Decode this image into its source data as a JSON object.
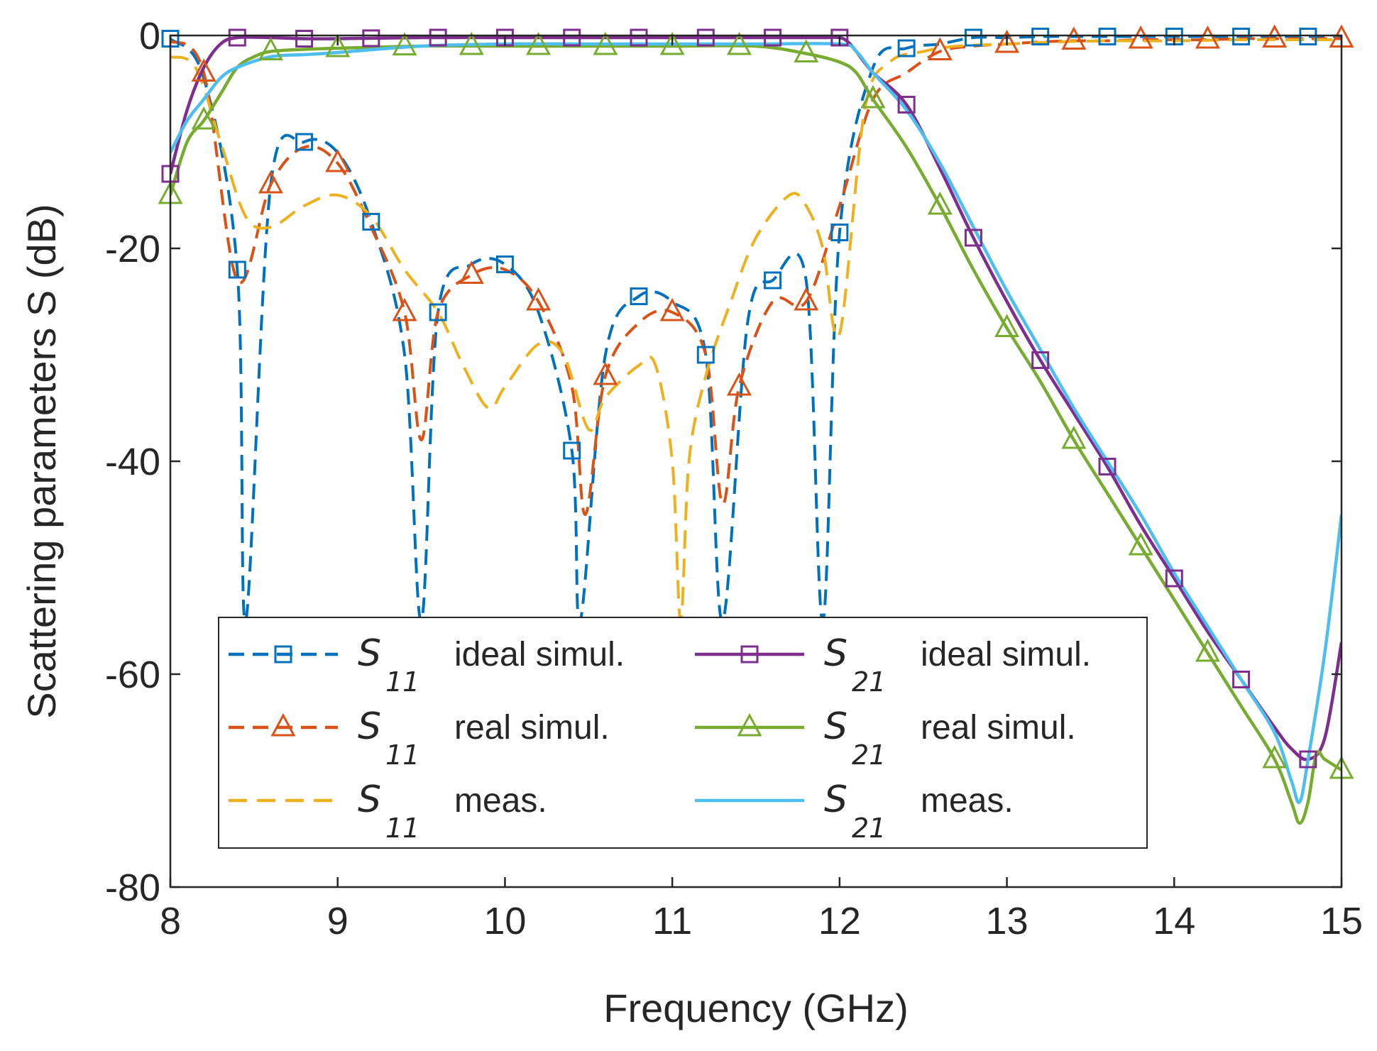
{
  "chart_data": {
    "type": "line",
    "xlabel": "Frequency (GHz)",
    "ylabel": "Scattering parameters  S  (dB)",
    "xlim": [
      8,
      15
    ],
    "ylim": [
      -80,
      0
    ],
    "xticks": [
      8,
      9,
      10,
      11,
      12,
      13,
      14,
      15
    ],
    "yticks": [
      0,
      -20,
      -40,
      -60,
      -80
    ],
    "grid": false,
    "legend_position": "lower-center",
    "series": [
      {
        "id": "s11-ideal",
        "legend": {
          "sym": "S",
          "sub": "11",
          "desc": "ideal simul."
        },
        "color": "#0072BD",
        "dash": "dashed",
        "marker": "square",
        "x": [
          8.0,
          8.2,
          8.4,
          8.45,
          8.6,
          8.8,
          9.0,
          9.2,
          9.4,
          9.5,
          9.6,
          9.8,
          10.0,
          10.2,
          10.4,
          10.45,
          10.6,
          10.8,
          11.0,
          11.2,
          11.3,
          11.45,
          11.6,
          11.8,
          11.9,
          12.0,
          12.2,
          12.4,
          12.6,
          12.8,
          13.0,
          13.2,
          13.4,
          13.6,
          13.8,
          14.0,
          14.2,
          14.4,
          14.6,
          14.8,
          15.0
        ],
        "y": [
          -0.3,
          -4,
          -22,
          -55,
          -14,
          -10,
          -11,
          -17.5,
          -30,
          -55,
          -26,
          -21.5,
          -21.5,
          -26,
          -39,
          -55,
          -30,
          -24.5,
          -25,
          -30,
          -55,
          -27,
          -23,
          -23,
          -55,
          -18.5,
          -3,
          -1.2,
          -0.8,
          -0.2,
          -0.2,
          -0.1,
          -0.1,
          -0.1,
          -0.1,
          -0.1,
          -0.1,
          -0.1,
          -0.1,
          -0.1,
          -0.1
        ],
        "marker_x": [
          8.0,
          8.4,
          8.8,
          9.2,
          9.6,
          10.0,
          10.4,
          10.8,
          11.2,
          11.6,
          12.0,
          12.4,
          12.8,
          13.2,
          13.6,
          14.0,
          14.4,
          14.8
        ]
      },
      {
        "id": "s11-real",
        "legend": {
          "sym": "S",
          "sub": "11",
          "desc": "real simul."
        },
        "color": "#D95319",
        "dash": "dashed",
        "marker": "triangle",
        "x": [
          8.0,
          8.2,
          8.4,
          8.6,
          8.8,
          9.0,
          9.2,
          9.4,
          9.5,
          9.6,
          9.8,
          10.0,
          10.2,
          10.4,
          10.48,
          10.6,
          10.8,
          11.0,
          11.2,
          11.3,
          11.4,
          11.6,
          11.8,
          12.0,
          12.2,
          12.4,
          12.6,
          12.8,
          13.0,
          13.2,
          13.4,
          13.6,
          13.8,
          14.0,
          14.2,
          14.4,
          14.6,
          14.8,
          15.0
        ],
        "y": [
          -0.5,
          -3.5,
          -23,
          -14,
          -10.5,
          -12,
          -18,
          -26,
          -38,
          -26,
          -22.5,
          -22,
          -25,
          -33,
          -45,
          -32,
          -27,
          -26,
          -30,
          -44,
          -33,
          -25,
          -25,
          -16,
          -6,
          -3.5,
          -1.5,
          -1,
          -0.8,
          -0.6,
          -0.5,
          -0.5,
          -0.4,
          -0.4,
          -0.4,
          -0.3,
          -0.3,
          -0.3,
          -0.3
        ],
        "marker_x": [
          8.2,
          8.6,
          9.0,
          9.4,
          9.8,
          10.2,
          10.6,
          11.0,
          11.4,
          11.8,
          12.2,
          12.6,
          13.0,
          13.4,
          13.8,
          14.2,
          14.6,
          15.0
        ]
      },
      {
        "id": "s11-meas",
        "legend": {
          "sym": "S",
          "sub": "11",
          "desc": "meas."
        },
        "color": "#EDB120",
        "dash": "dashed",
        "marker": "none",
        "x": [
          8.0,
          8.15,
          8.3,
          8.45,
          8.6,
          8.8,
          9.0,
          9.2,
          9.4,
          9.6,
          9.75,
          9.9,
          10.0,
          10.2,
          10.35,
          10.5,
          10.6,
          10.8,
          10.9,
          11.0,
          11.05,
          11.1,
          11.2,
          11.35,
          11.5,
          11.7,
          11.8,
          11.9,
          12.0,
          12.15,
          12.3,
          12.5,
          12.7,
          13.0,
          13.3,
          13.6,
          14.0,
          14.4,
          14.8,
          15.0
        ],
        "y": [
          -2,
          -3,
          -10,
          -17,
          -18,
          -16,
          -15,
          -17,
          -22,
          -26,
          -31,
          -35,
          -33,
          -29,
          -30,
          -37,
          -34,
          -31,
          -31,
          -40,
          -55,
          -40,
          -32,
          -25,
          -19,
          -15,
          -16,
          -20,
          -28,
          -7,
          -2.5,
          -1.5,
          -1,
          -0.8,
          -0.6,
          -0.5,
          -0.5,
          -0.4,
          -0.4,
          -0.4
        ]
      },
      {
        "id": "s21-ideal",
        "legend": {
          "sym": "S",
          "sub": "21",
          "desc": "ideal simul."
        },
        "color": "#7E2F8E",
        "dash": "solid",
        "marker": "square",
        "x": [
          8.0,
          8.1,
          8.2,
          8.3,
          8.4,
          8.6,
          8.8,
          9.0,
          9.5,
          10.0,
          10.5,
          11.0,
          11.5,
          11.9,
          12.0,
          12.05,
          12.1,
          12.2,
          12.4,
          12.6,
          12.8,
          13.0,
          13.2,
          13.4,
          13.6,
          13.8,
          14.0,
          14.2,
          14.4,
          14.6,
          14.7,
          14.8,
          14.9,
          15.0
        ],
        "y": [
          -13,
          -7,
          -3,
          -0.8,
          -0.2,
          -0.2,
          -0.3,
          -0.3,
          -0.2,
          -0.2,
          -0.2,
          -0.2,
          -0.2,
          -0.2,
          -0.2,
          -0.6,
          -1.5,
          -3.5,
          -6.5,
          -12.5,
          -19,
          -25,
          -30.5,
          -35.5,
          -40.5,
          -46,
          -51,
          -56,
          -60.5,
          -65,
          -67,
          -68,
          -66,
          -57
        ],
        "marker_x": [
          8.0,
          8.4,
          8.8,
          9.2,
          9.6,
          10.0,
          10.4,
          10.8,
          11.2,
          11.6,
          12.0,
          12.4,
          12.8,
          13.2,
          13.6,
          14.0,
          14.4,
          14.8
        ]
      },
      {
        "id": "s21-real",
        "legend": {
          "sym": "S",
          "sub": "21",
          "desc": "real simul."
        },
        "color": "#77AC30",
        "dash": "solid",
        "marker": "triangle",
        "x": [
          8.0,
          8.1,
          8.2,
          8.3,
          8.4,
          8.5,
          8.6,
          8.8,
          9.0,
          9.5,
          10.0,
          10.5,
          11.0,
          11.5,
          11.8,
          12.0,
          12.1,
          12.2,
          12.4,
          12.6,
          12.8,
          13.0,
          13.2,
          13.4,
          13.6,
          13.8,
          14.0,
          14.2,
          14.4,
          14.6,
          14.7,
          14.75,
          14.8,
          14.85,
          14.9,
          15.0
        ],
        "y": [
          -15,
          -10,
          -8,
          -5.5,
          -3,
          -2,
          -1.5,
          -1.3,
          -1.2,
          -1,
          -1,
          -1,
          -1,
          -1,
          -1.7,
          -2.5,
          -3.5,
          -6,
          -10.5,
          -16,
          -22,
          -27.5,
          -32.5,
          -38,
          -43,
          -48,
          -53,
          -58,
          -63,
          -68,
          -72,
          -74,
          -72,
          -67.5,
          -68,
          -69
        ],
        "marker_x": [
          8.0,
          8.2,
          8.6,
          9.0,
          9.4,
          9.8,
          10.2,
          10.6,
          11.0,
          11.4,
          11.8,
          12.2,
          12.6,
          13.0,
          13.4,
          13.8,
          14.2,
          14.6,
          15.0
        ]
      },
      {
        "id": "s21-meas",
        "legend": {
          "sym": "S",
          "sub": "21",
          "desc": "meas."
        },
        "color": "#4DBEEE",
        "dash": "solid",
        "marker": "none",
        "x": [
          8.0,
          8.1,
          8.2,
          8.3,
          8.4,
          8.6,
          8.8,
          9.0,
          9.5,
          10.0,
          10.5,
          11.0,
          11.5,
          12.0,
          12.1,
          12.2,
          12.4,
          12.6,
          12.8,
          13.0,
          13.2,
          13.4,
          13.6,
          13.8,
          14.0,
          14.2,
          14.4,
          14.6,
          14.7,
          14.75,
          14.8,
          14.9,
          15.0
        ],
        "y": [
          -11,
          -8,
          -6,
          -4,
          -3,
          -2,
          -1.8,
          -1.6,
          -1,
          -0.8,
          -0.8,
          -0.8,
          -0.8,
          -0.8,
          -1.5,
          -3.5,
          -7,
          -12,
          -18,
          -24,
          -29.5,
          -35,
          -40,
          -45,
          -50.5,
          -55.5,
          -60.5,
          -65.5,
          -70,
          -72,
          -68,
          -58,
          -45
        ]
      }
    ]
  }
}
